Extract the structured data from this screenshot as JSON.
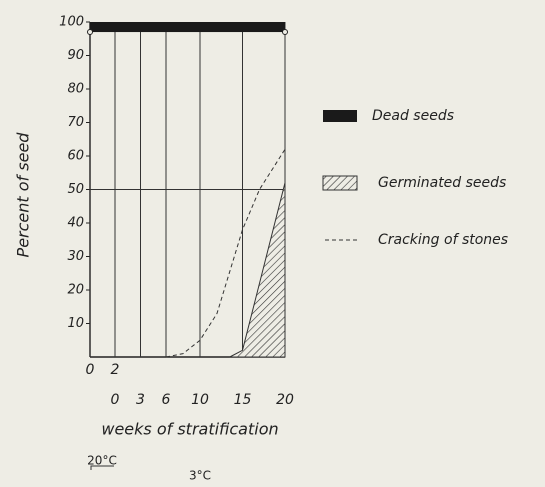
{
  "chart_data": {
    "type": "area",
    "ylabel": "Percent of seed",
    "xlabel": "weeks of stratification",
    "ylim": [
      0,
      100
    ],
    "yticks": [
      10,
      20,
      30,
      40,
      50,
      60,
      70,
      80,
      90,
      100
    ],
    "reference_line": 50,
    "x_segments": [
      {
        "label": "20°C",
        "xlim": [
          0,
          2
        ],
        "xticks": [
          0,
          2
        ]
      },
      {
        "label": "3°C",
        "xlim": [
          0,
          20
        ],
        "xticks": [
          0,
          3,
          6,
          10,
          15,
          20
        ]
      }
    ],
    "series": [
      {
        "name": "Dead seeds",
        "color": "#1a1a1a",
        "style": "band",
        "value": 3
      },
      {
        "name": "Germinated seeds",
        "color": "#333333",
        "style": "hatched",
        "x": [
          13.5,
          15,
          20
        ],
        "values": [
          0,
          2,
          52
        ]
      },
      {
        "name": "Cracking of stones",
        "color": "#333333",
        "style": "dashed",
        "x": [
          6,
          8,
          10,
          12,
          15,
          17,
          20
        ],
        "values": [
          0,
          1,
          5,
          13,
          38,
          50,
          62
        ]
      }
    ]
  }
}
